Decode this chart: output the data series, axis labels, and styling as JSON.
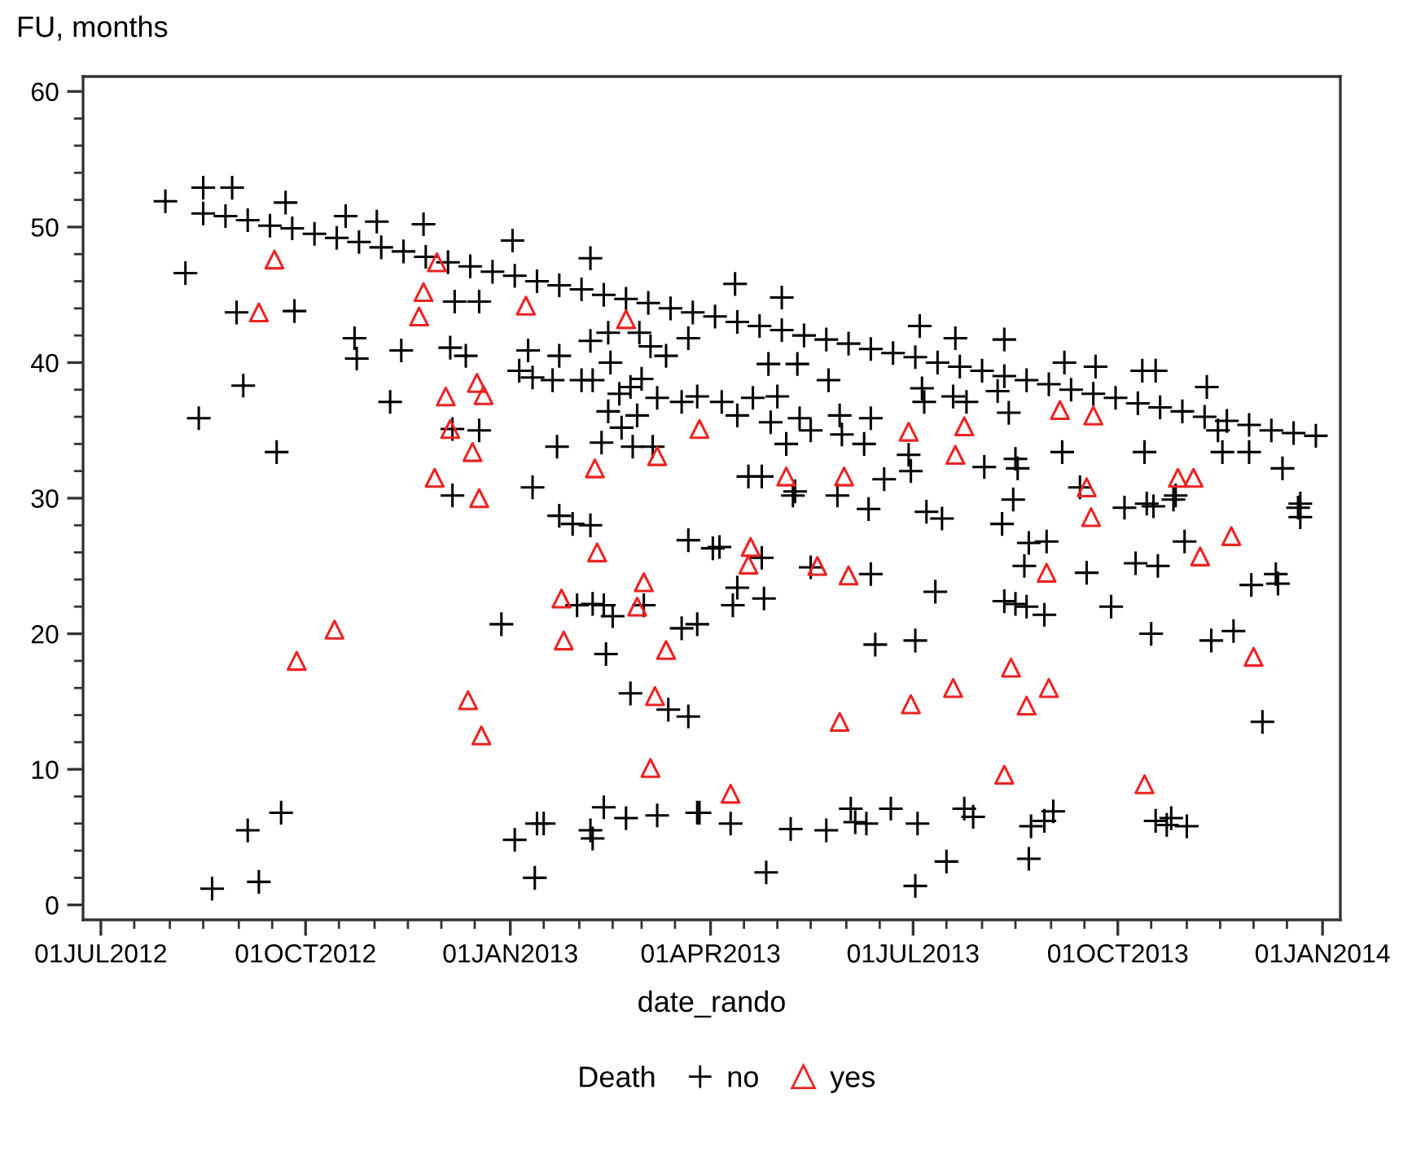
{
  "chart_data": {
    "type": "scatter",
    "ylabel": "FU, months",
    "xlabel": "date_rando",
    "legend_title": "Death",
    "legend": "bottom",
    "grid": false,
    "xlim": [
      "2012-06-23",
      "2014-01-09"
    ],
    "ylim": [
      -1.1,
      61.1
    ],
    "xticks": [
      {
        "value": "2012-07-01",
        "label": "01JUL2012"
      },
      {
        "value": "2012-07-16",
        "label": null
      },
      {
        "value": "2012-08-01",
        "label": null
      },
      {
        "value": "2012-08-16",
        "label": null
      },
      {
        "value": "2012-09-01",
        "label": null
      },
      {
        "value": "2012-09-16",
        "label": null
      },
      {
        "value": "2012-10-01",
        "label": "01OCT2012"
      },
      {
        "value": "2012-10-16",
        "label": null
      },
      {
        "value": "2012-11-01",
        "label": null
      },
      {
        "value": "2012-11-16",
        "label": null
      },
      {
        "value": "2012-12-01",
        "label": null
      },
      {
        "value": "2012-12-16",
        "label": null
      },
      {
        "value": "2013-01-01",
        "label": "01JAN2013"
      },
      {
        "value": "2013-01-16",
        "label": null
      },
      {
        "value": "2013-02-01",
        "label": null
      },
      {
        "value": "2013-02-16",
        "label": null
      },
      {
        "value": "2013-03-01",
        "label": null
      },
      {
        "value": "2013-03-16",
        "label": null
      },
      {
        "value": "2013-04-01",
        "label": "01APR2013"
      },
      {
        "value": "2013-04-16",
        "label": null
      },
      {
        "value": "2013-05-01",
        "label": null
      },
      {
        "value": "2013-05-16",
        "label": null
      },
      {
        "value": "2013-06-01",
        "label": null
      },
      {
        "value": "2013-06-16",
        "label": null
      },
      {
        "value": "2013-07-01",
        "label": "01JUL2013"
      },
      {
        "value": "2013-07-16",
        "label": null
      },
      {
        "value": "2013-08-01",
        "label": null
      },
      {
        "value": "2013-08-16",
        "label": null
      },
      {
        "value": "2013-09-01",
        "label": null
      },
      {
        "value": "2013-09-16",
        "label": null
      },
      {
        "value": "2013-10-01",
        "label": "01OCT2013"
      },
      {
        "value": "2013-10-16",
        "label": null
      },
      {
        "value": "2013-11-01",
        "label": null
      },
      {
        "value": "2013-11-16",
        "label": null
      },
      {
        "value": "2013-12-01",
        "label": null
      },
      {
        "value": "2013-12-16",
        "label": null
      },
      {
        "value": "2014-01-01",
        "label": "01JAN2014"
      }
    ],
    "yticks": [
      0,
      {
        "value": 2,
        "label": null
      },
      {
        "value": 4,
        "label": null
      },
      {
        "value": 6,
        "label": null
      },
      {
        "value": 8,
        "label": null
      },
      10,
      {
        "value": 12,
        "label": null
      },
      {
        "value": 14,
        "label": null
      },
      {
        "value": 16,
        "label": null
      },
      {
        "value": 18,
        "label": null
      },
      20,
      {
        "value": 22,
        "label": null
      },
      {
        "value": 24,
        "label": null
      },
      {
        "value": 26,
        "label": null
      },
      {
        "value": 28,
        "label": null
      },
      30,
      {
        "value": 32,
        "label": null
      },
      {
        "value": 34,
        "label": null
      },
      {
        "value": 36,
        "label": null
      },
      {
        "value": 38,
        "label": null
      },
      40,
      {
        "value": 42,
        "label": null
      },
      {
        "value": 44,
        "label": null
      },
      {
        "value": 46,
        "label": null
      },
      {
        "value": 48,
        "label": null
      },
      50,
      {
        "value": 52,
        "label": null
      },
      {
        "value": 54,
        "label": null
      },
      {
        "value": 56,
        "label": null
      },
      {
        "value": 58,
        "label": null
      },
      60
    ],
    "series": [
      {
        "name": "no",
        "color": "#000000",
        "marker": "cross",
        "x": [
          "2012-08-16",
          "2012-08-26",
          "2012-09-05",
          "2012-09-15",
          "2012-09-25",
          "2012-10-05",
          "2012-10-15",
          "2012-10-25",
          "2012-11-04",
          "2012-11-14",
          "2012-11-24",
          "2012-12-04",
          "2012-12-14",
          "2012-12-24",
          "2013-01-03",
          "2013-01-13",
          "2013-01-23",
          "2013-02-02",
          "2013-02-12",
          "2013-02-22",
          "2013-03-04",
          "2013-03-14",
          "2013-03-24",
          "2013-04-03",
          "2013-04-13",
          "2013-04-23",
          "2013-05-03",
          "2013-05-13",
          "2013-05-23",
          "2013-06-02",
          "2013-06-12",
          "2013-06-22",
          "2013-07-02",
          "2013-07-12",
          "2013-07-22",
          "2013-08-01",
          "2013-08-11",
          "2013-08-21",
          "2013-08-31",
          "2013-09-10",
          "2013-09-20",
          "2013-09-30",
          "2013-10-10",
          "2013-10-20",
          "2013-10-30",
          "2013-11-09",
          "2013-11-19",
          "2013-11-29",
          "2013-12-09",
          "2013-12-19",
          "2013-12-29",
          "2012-07-30",
          "2012-08-16",
          "2012-08-29",
          "2012-09-22",
          "2012-10-19",
          "2012-11-02",
          "2012-11-23",
          "2013-01-02",
          "2013-02-06",
          "2012-08-08",
          "2012-08-31",
          "2012-09-26",
          "2012-12-07",
          "2012-12-18",
          "2012-10-23",
          "2012-10-24",
          "2012-11-13",
          "2012-12-05",
          "2012-12-12",
          "2013-01-09",
          "2013-01-23",
          "2013-02-06",
          "2013-02-14",
          "2013-02-28",
          "2013-03-05",
          "2013-03-12",
          "2013-03-22",
          "2013-02-15",
          "2013-01-05",
          "2013-01-11",
          "2013-01-20",
          "2013-02-02",
          "2013-02-07",
          "2013-02-19",
          "2013-02-24",
          "2013-03-01",
          "2013-03-08",
          "2013-03-19",
          "2013-03-26",
          "2012-11-08",
          "2012-09-03",
          "2012-08-14",
          "2012-09-18",
          "2012-12-06",
          "2012-12-18",
          "2013-01-22",
          "2013-02-11",
          "2013-02-14",
          "2013-02-20",
          "2013-02-27",
          "2013-02-25",
          "2013-03-06",
          "2012-12-06",
          "2013-01-11",
          "2013-01-23",
          "2013-01-29",
          "2013-02-06",
          "2013-03-22",
          "2013-04-02",
          "2013-01-31",
          "2013-02-07",
          "2013-02-12",
          "2013-02-16",
          "2013-03-02",
          "2012-12-28",
          "2013-02-13",
          "2013-03-19",
          "2013-03-26",
          "2013-02-24",
          "2013-03-13",
          "2013-03-22",
          "2012-08-20",
          "2012-09-05",
          "2012-09-10",
          "2012-09-20",
          "2013-01-03",
          "2013-01-12",
          "2013-01-13",
          "2013-01-16",
          "2013-02-06",
          "2013-02-07",
          "2013-02-12",
          "2013-02-22",
          "2013-03-08",
          "2013-03-26",
          "2013-04-12",
          "2013-05-03",
          "2013-07-04",
          "2013-07-20",
          "2013-08-11",
          "2013-09-07",
          "2013-09-21",
          "2013-10-12",
          "2013-10-18",
          "2013-11-10",
          "2013-04-27",
          "2013-05-10",
          "2013-05-24",
          "2013-04-06",
          "2013-04-20",
          "2013-05-01",
          "2013-04-13",
          "2013-04-28",
          "2013-05-11",
          "2013-05-16",
          "2013-05-29",
          "2013-05-30",
          "2013-06-12",
          "2013-06-09",
          "2013-05-05",
          "2013-07-05",
          "2013-07-06",
          "2013-07-19",
          "2013-07-25",
          "2013-08-08",
          "2013-08-13",
          "2013-06-29",
          "2013-06-30",
          "2013-08-02",
          "2013-08-16",
          "2013-08-17",
          "2013-09-06",
          "2013-09-14",
          "2013-10-13",
          "2013-11-15",
          "2013-11-17",
          "2013-11-29",
          "2013-12-14",
          "2013-12-22",
          "2013-04-18",
          "2013-04-24",
          "2013-05-09",
          "2013-06-18",
          "2013-10-27",
          "2013-10-14",
          "2013-04-05",
          "2013-04-24",
          "2013-04-13",
          "2013-04-11",
          "2013-04-25",
          "2013-05-16",
          "2013-06-12",
          "2013-07-11",
          "2013-06-14",
          "2013-07-02",
          "2013-08-11",
          "2013-08-16",
          "2013-08-21",
          "2013-08-29",
          "2013-08-22",
          "2013-08-30",
          "2013-08-20",
          "2013-09-17",
          "2013-09-28",
          "2013-10-16",
          "2013-10-09",
          "2013-10-19",
          "2013-10-31",
          "2013-11-12",
          "2013-11-22",
          "2013-11-30",
          "2013-12-11",
          "2013-12-12",
          "2013-12-05",
          "2013-12-21",
          "2013-12-22",
          "2013-10-04",
          "2013-10-17",
          "2013-10-26",
          "2013-08-15",
          "2013-08-10",
          "2013-07-07",
          "2013-07-14",
          "2013-06-11",
          "2013-05-28",
          "2013-05-08",
          "2013-03-27",
          "2013-04-10",
          "2013-04-26",
          "2013-05-07",
          "2013-05-23",
          "2013-06-03",
          "2013-06-05",
          "2013-06-10",
          "2013-06-21",
          "2013-07-03",
          "2013-07-02",
          "2013-07-16",
          "2013-07-24",
          "2013-07-28",
          "2013-08-22",
          "2013-08-23",
          "2013-08-29",
          "2013-09-02",
          "2013-10-18",
          "2013-10-23",
          "2013-10-25",
          "2013-11-01"
        ],
        "values": [
          51.0,
          50.8,
          50.5,
          50.1,
          49.9,
          49.5,
          49.2,
          48.9,
          48.5,
          48.2,
          47.8,
          47.4,
          47.1,
          46.7,
          46.4,
          46.0,
          45.7,
          45.4,
          45.0,
          44.7,
          44.4,
          44.0,
          43.7,
          43.4,
          43.0,
          42.7,
          42.4,
          42.0,
          41.7,
          41.4,
          41.0,
          40.7,
          40.4,
          40.0,
          39.7,
          39.4,
          39.0,
          38.7,
          38.4,
          38.0,
          37.7,
          37.4,
          37.0,
          36.7,
          36.4,
          36.0,
          35.7,
          35.4,
          35.0,
          34.8,
          34.6,
          51.9,
          52.9,
          52.9,
          51.8,
          50.8,
          50.4,
          50.2,
          49.0,
          47.7,
          46.6,
          43.7,
          43.8,
          44.5,
          44.5,
          41.8,
          40.3,
          40.9,
          41.1,
          40.5,
          40.9,
          40.5,
          41.6,
          42.2,
          42.2,
          41.2,
          40.5,
          41.8,
          40.0,
          39.4,
          38.9,
          38.7,
          38.7,
          38.7,
          37.7,
          38.2,
          38.8,
          37.4,
          37.1,
          37.5,
          37.1,
          38.3,
          35.9,
          33.4,
          35.1,
          35.0,
          33.8,
          34.1,
          36.4,
          35.2,
          36.1,
          33.8,
          33.8,
          30.2,
          30.8,
          28.7,
          28.1,
          28.0,
          26.9,
          26.3,
          22.1,
          22.2,
          22.1,
          21.3,
          22.1,
          20.7,
          18.5,
          20.4,
          20.7,
          15.6,
          14.4,
          13.9,
          1.2,
          5.5,
          1.7,
          6.8,
          4.8,
          2.0,
          6.0,
          6.0,
          5.5,
          4.9,
          7.2,
          6.4,
          6.6,
          6.8,
          45.8,
          44.8,
          42.7,
          41.8,
          41.7,
          40.0,
          39.7,
          39.4,
          39.4,
          38.2,
          39.9,
          39.9,
          38.7,
          37.1,
          37.4,
          37.5,
          36.1,
          35.6,
          35.9,
          35.0,
          36.1,
          34.7,
          35.9,
          34.0,
          34.0,
          38.1,
          37.1,
          37.5,
          37.1,
          37.9,
          36.3,
          33.2,
          32.0,
          32.3,
          32.9,
          32.2,
          33.4,
          30.8,
          33.4,
          35.0,
          33.4,
          33.4,
          32.2,
          29.6,
          31.6,
          31.6,
          30.5,
          31.4,
          30.2,
          29.6,
          26.4,
          25.6,
          23.4,
          22.1,
          22.6,
          24.9,
          24.4,
          23.1,
          19.2,
          19.5,
          22.4,
          22.2,
          22.0,
          21.4,
          26.7,
          26.8,
          25.0,
          24.5,
          22.0,
          20.0,
          25.2,
          25.0,
          26.8,
          19.5,
          20.2,
          23.6,
          24.4,
          23.7,
          13.5,
          29.3,
          28.6,
          29.3,
          29.4,
          29.9,
          29.9,
          28.1,
          29.0,
          28.5,
          29.2,
          30.2,
          30.2,
          6.8,
          6.0,
          2.4,
          5.6,
          5.5,
          7.1,
          6.1,
          6.0,
          7.1,
          6.0,
          1.4,
          3.2,
          7.1,
          6.5,
          3.4,
          5.8,
          6.2,
          6.9,
          6.2,
          5.9,
          6.4,
          5.8
        ]
      },
      {
        "name": "yes",
        "color": "#ee2222",
        "marker": "triangle",
        "x": [
          "2012-09-10",
          "2012-09-17",
          "2012-09-27",
          "2012-10-14",
          "2012-11-21",
          "2012-11-23",
          "2012-11-29",
          "2012-11-28",
          "2012-12-03",
          "2012-12-05",
          "2012-12-13",
          "2012-12-15",
          "2012-12-17",
          "2012-12-20",
          "2012-12-18",
          "2012-12-19",
          "2013-01-08",
          "2013-01-24",
          "2013-01-25",
          "2013-02-08",
          "2013-02-09",
          "2013-02-22",
          "2013-02-27",
          "2013-03-02",
          "2013-03-05",
          "2013-03-07",
          "2013-03-08",
          "2013-03-12",
          "2013-03-27",
          "2013-04-10",
          "2013-04-18",
          "2013-04-19",
          "2013-05-05",
          "2013-05-19",
          "2013-05-29",
          "2013-05-31",
          "2013-06-02",
          "2013-06-29",
          "2013-06-30",
          "2013-07-20",
          "2013-07-19",
          "2013-07-24",
          "2013-08-11",
          "2013-08-14",
          "2013-08-21",
          "2013-08-30",
          "2013-08-31",
          "2013-09-05",
          "2013-09-17",
          "2013-09-19",
          "2013-09-20",
          "2013-10-13",
          "2013-10-28",
          "2013-11-04",
          "2013-11-07",
          "2013-11-21",
          "2013-12-01"
        ],
        "values": [
          43.7,
          47.6,
          18.0,
          20.3,
          43.4,
          45.2,
          47.4,
          31.5,
          37.5,
          35.1,
          15.1,
          33.4,
          38.5,
          37.6,
          30.0,
          12.5,
          44.2,
          22.6,
          19.5,
          32.2,
          26.0,
          43.2,
          22.0,
          23.8,
          10.1,
          15.4,
          33.1,
          18.8,
          35.1,
          8.2,
          25.1,
          26.4,
          31.6,
          25.0,
          13.5,
          31.6,
          24.3,
          34.9,
          14.8,
          33.2,
          16.0,
          35.3,
          9.6,
          17.5,
          14.7,
          24.5,
          16.0,
          36.5,
          30.8,
          28.6,
          36.1,
          8.9,
          31.5,
          31.5,
          25.7,
          27.2,
          18.3
        ]
      }
    ]
  }
}
